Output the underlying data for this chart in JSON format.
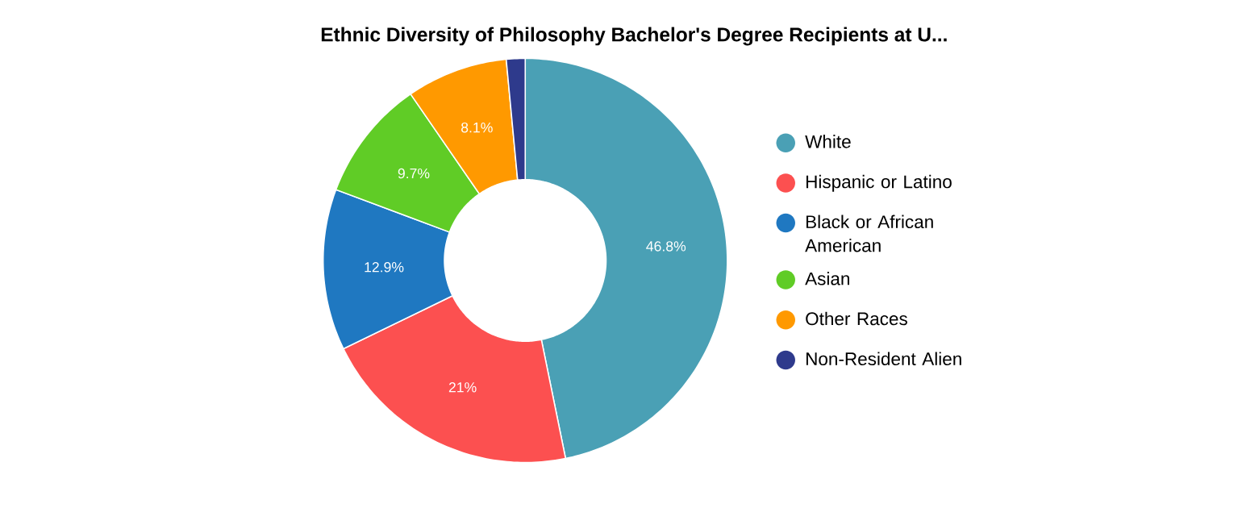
{
  "chart_data": {
    "type": "donut",
    "title": "Ethnic Diversity of Philosophy Bachelor's Degree Recipients at U...",
    "categories": [
      "White",
      "Hispanic or Latino",
      "Black or African American",
      "Asian",
      "Other Races",
      "Non-Resident Alien"
    ],
    "values": [
      46.8,
      21,
      12.9,
      9.7,
      8.1,
      1.5
    ],
    "colors": [
      "#4aa0b5",
      "#fc5050",
      "#1f78c1",
      "#60cc26",
      "#ff9900",
      "#2e3a8c"
    ],
    "value_labels": [
      "46.8%",
      "21%",
      "12.9%",
      "9.7%",
      "8.1%",
      null
    ],
    "legend": "right"
  }
}
